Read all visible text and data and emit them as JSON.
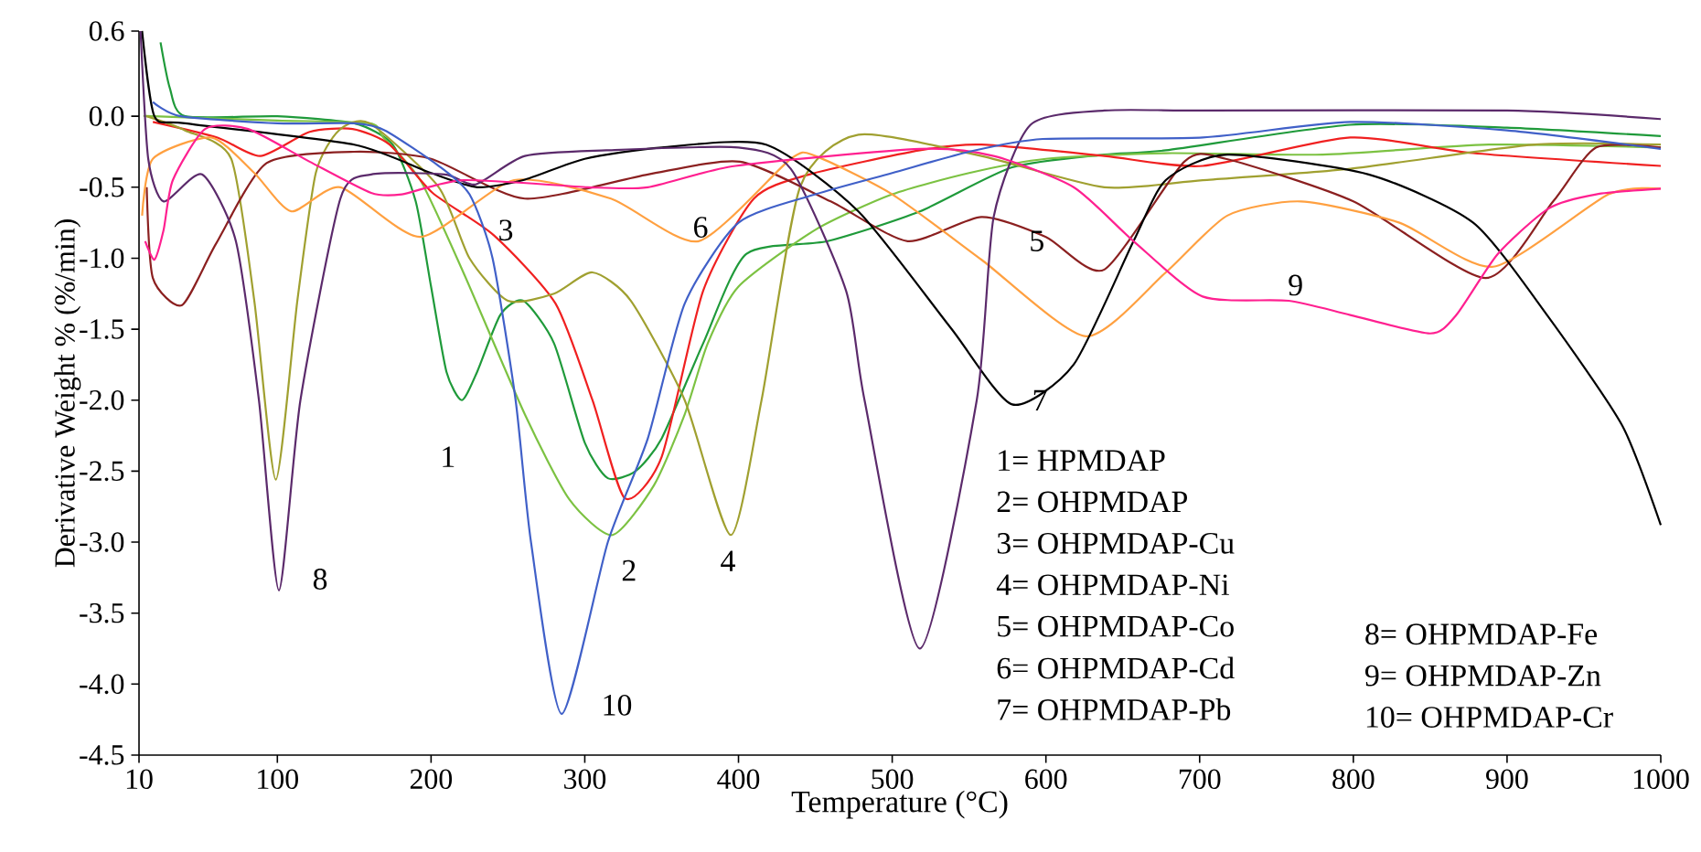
{
  "chart_data": {
    "type": "line",
    "xlabel": "Temperature (°C)",
    "ylabel": "Derivative Weight % (%/min)",
    "xlim": [
      10,
      1000
    ],
    "xticks": [
      10,
      100,
      200,
      300,
      400,
      500,
      600,
      700,
      800,
      900,
      1000
    ],
    "ylim": [
      -4.5,
      0.6
    ],
    "yticks": [
      {
        "value": -4.5,
        "label": "-4.5"
      },
      {
        "value": -4.0,
        "label": "-4.0"
      },
      -3.5,
      {
        "value": -3.0,
        "label": "-3.0"
      },
      -2.5,
      {
        "value": -2.0,
        "label": "-2.0"
      },
      -1.5,
      {
        "value": -1.0,
        "label": "-1.0"
      },
      -0.5,
      {
        "value": 0,
        "label": "0.0"
      },
      0.6
    ],
    "series": [
      {
        "color": "#1f9a3a",
        "x": [
          24,
          30,
          40,
          100,
          150,
          175,
          190,
          200,
          210,
          220,
          230,
          245,
          260,
          280,
          300,
          315,
          333,
          350,
          377,
          405,
          458,
          518,
          578,
          638,
          678,
          798,
          900,
          1000
        ],
        "values": [
          0.52,
          0.2,
          0.0,
          0.0,
          -0.05,
          -0.2,
          -0.6,
          -1.2,
          -1.8,
          -2.0,
          -1.8,
          -1.4,
          -1.3,
          -1.6,
          -2.3,
          -2.55,
          -2.5,
          -2.27,
          -1.6,
          -0.97,
          -0.88,
          -0.67,
          -0.36,
          -0.27,
          -0.24,
          -0.06,
          -0.08,
          -0.14
        ]
      },
      {
        "color": "#7cc242",
        "x": [
          15,
          19,
          100,
          160,
          169,
          193,
          221,
          261,
          290,
          318,
          345,
          365,
          380,
          400,
          450,
          500,
          550,
          600,
          678,
          780,
          888,
          1000
        ],
        "values": [
          0.0,
          0.0,
          -0.03,
          -0.05,
          -0.15,
          -0.45,
          -1.1,
          -2.1,
          -2.7,
          -2.95,
          -2.6,
          -2.1,
          -1.6,
          -1.2,
          -0.8,
          -0.55,
          -0.4,
          -0.3,
          -0.26,
          -0.27,
          -0.2,
          -0.22
        ]
      },
      {
        "color": "#f02020",
        "x": [
          19,
          61,
          89,
          121,
          149,
          173,
          201,
          241,
          281,
          305,
          326,
          350,
          377,
          410,
          446,
          518,
          558,
          638,
          702,
          798,
          878,
          1000
        ],
        "values": [
          -0.04,
          -0.15,
          -0.28,
          -0.11,
          -0.09,
          -0.2,
          -0.54,
          -0.84,
          -1.32,
          -2.0,
          -2.69,
          -2.4,
          -1.23,
          -0.58,
          -0.41,
          -0.24,
          -0.2,
          -0.28,
          -0.35,
          -0.15,
          -0.26,
          -0.35
        ]
      },
      {
        "color": "#a0a030",
        "x": [
          15,
          40,
          70,
          85,
          99,
          113,
          125,
          140,
          160,
          205,
          225,
          250,
          280,
          305,
          330,
          365,
          395,
          415,
          440,
          478,
          558,
          638,
          702,
          798,
          918,
          1000
        ],
        "values": [
          0.0,
          -0.1,
          -0.3,
          -1.3,
          -2.56,
          -1.3,
          -0.4,
          -0.1,
          -0.05,
          -0.5,
          -1.0,
          -1.3,
          -1.25,
          -1.1,
          -1.3,
          -2.0,
          -2.95,
          -2.0,
          -0.5,
          -0.13,
          -0.28,
          -0.5,
          -0.45,
          -0.37,
          -0.2,
          -0.2
        ]
      },
      {
        "color": "#8b2020",
        "x": [
          15,
          19,
          38,
          60,
          93,
          150,
          200,
          261,
          341,
          401,
          460,
          510,
          558,
          600,
          638,
          690,
          717,
          800,
          886,
          930,
          958,
          1000
        ],
        "values": [
          -0.5,
          -1.14,
          -1.33,
          -0.9,
          -0.33,
          -0.25,
          -0.3,
          -0.58,
          -0.41,
          -0.32,
          -0.6,
          -0.88,
          -0.71,
          -0.85,
          -1.08,
          -0.32,
          -0.3,
          -0.6,
          -1.14,
          -0.6,
          -0.22,
          -0.22
        ]
      },
      {
        "color": "#ffa040",
        "x": [
          12,
          19,
          57,
          85,
          109,
          141,
          193,
          254,
          317,
          374,
          434,
          450,
          500,
          558,
          626,
          678,
          718,
          766,
          830,
          891,
          966,
          1000
        ],
        "values": [
          -0.7,
          -0.3,
          -0.15,
          -0.4,
          -0.67,
          -0.5,
          -0.85,
          -0.45,
          -0.58,
          -0.88,
          -0.3,
          -0.28,
          -0.55,
          -1.01,
          -1.55,
          -1.1,
          -0.7,
          -0.6,
          -0.75,
          -1.06,
          -0.55,
          -0.51
        ]
      },
      {
        "color": "#000000",
        "x": [
          12,
          20,
          40,
          150,
          200,
          230,
          260,
          300,
          350,
          418,
          478,
          538,
          578,
          618,
          657,
          678,
          718,
          810,
          878,
          926,
          975,
          1000
        ],
        "values": [
          0.6,
          0.0,
          -0.05,
          -0.2,
          -0.4,
          -0.5,
          -0.45,
          -0.3,
          -0.22,
          -0.2,
          -0.67,
          -1.49,
          -2.03,
          -1.75,
          -0.88,
          -0.45,
          -0.27,
          -0.41,
          -0.75,
          -1.4,
          -2.18,
          -2.88
        ]
      },
      {
        "color": "#5b2a6b",
        "x": [
          11,
          16,
          26,
          51,
          73,
          88,
          101,
          115,
          141,
          161,
          209,
          229,
          261,
          314,
          400,
          434,
          470,
          482,
          518,
          555,
          566,
          590,
          638,
          702,
          900,
          1000
        ],
        "values": [
          0.6,
          -0.3,
          -0.6,
          -0.41,
          -0.88,
          -2.0,
          -3.34,
          -2.0,
          -0.58,
          -0.41,
          -0.41,
          -0.48,
          -0.28,
          -0.24,
          -0.22,
          -0.37,
          -1.23,
          -2.0,
          -3.75,
          -2.0,
          -0.71,
          -0.06,
          0.04,
          0.04,
          0.04,
          -0.02
        ]
      },
      {
        "color": "#ff2090",
        "x": [
          14,
          20,
          26,
          32,
          53,
          81,
          121,
          161,
          181,
          221,
          302,
          341,
          398,
          518,
          566,
          618,
          657,
          702,
          758,
          798,
          850,
          867,
          894,
          927,
          958,
          1000
        ],
        "values": [
          -0.88,
          -1.01,
          -0.8,
          -0.45,
          -0.09,
          -0.09,
          -0.32,
          -0.54,
          -0.55,
          -0.45,
          -0.5,
          -0.5,
          -0.35,
          -0.23,
          -0.28,
          -0.5,
          -0.88,
          -1.27,
          -1.3,
          -1.4,
          -1.53,
          -1.4,
          -0.97,
          -0.65,
          -0.55,
          -0.51
        ]
      },
      {
        "color": "#4060c8",
        "x": [
          19,
          37,
          100,
          150,
          170,
          205,
          225,
          240,
          255,
          265,
          285,
          315,
          341,
          365,
          400,
          450,
          500,
          550,
          598,
          702,
          798,
          900,
          1000
        ],
        "values": [
          0.1,
          0.0,
          -0.05,
          -0.05,
          -0.1,
          -0.35,
          -0.55,
          -1.0,
          -2.0,
          -3.0,
          -4.21,
          -3.0,
          -2.27,
          -1.32,
          -0.75,
          -0.55,
          -0.4,
          -0.25,
          -0.16,
          -0.15,
          -0.04,
          -0.1,
          -0.23
        ]
      }
    ],
    "annotations": [
      "1",
      "2",
      "3",
      "4",
      "5",
      "6",
      "7",
      "8",
      "9",
      "10",
      "1= HPMDAP",
      "2= OHPMDAP",
      "3= OHPMDAP-Cu",
      "4= OHPMDAP-Ni",
      "5= OHPMDAP-Co",
      "6= OHPMDAP-Cd",
      "7= OHPMDAP-Pb",
      "8= OHPMDAP-Fe",
      "9= OHPMDAP-Zn",
      "10= OHPMDAP-Cr"
    ]
  }
}
